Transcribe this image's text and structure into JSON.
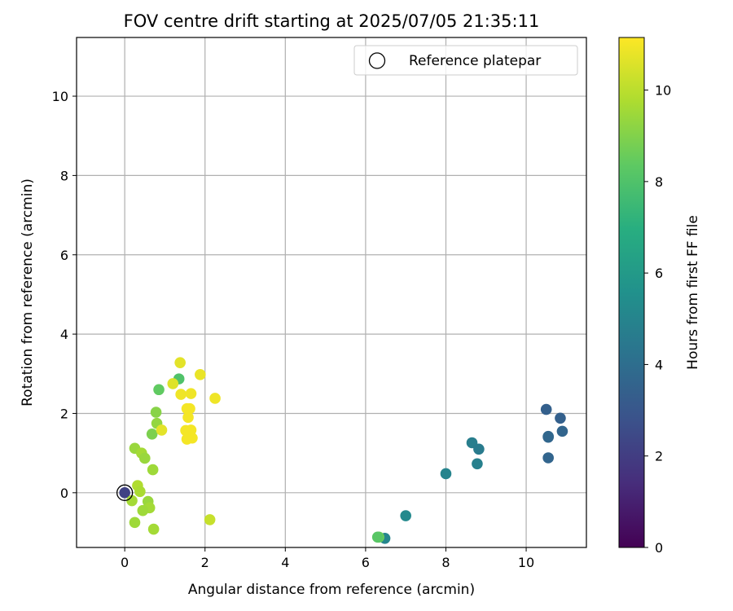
{
  "chart_data": {
    "type": "scatter",
    "title": "FOV centre drift starting at 2025/07/05 21:35:11",
    "xlabel": "Angular distance from reference (arcmin)",
    "ylabel": "Rotation from reference (arcmin)",
    "xlim": [
      -1.2,
      11.5
    ],
    "ylim": [
      -1.38,
      11.48
    ],
    "x_ticks": [
      0,
      2,
      4,
      6,
      8,
      10
    ],
    "y_ticks": [
      0,
      2,
      4,
      6,
      8,
      10
    ],
    "grid": true,
    "legend": {
      "position": "top-right",
      "entries": [
        "Reference platepar"
      ]
    },
    "reference_point": {
      "x": 0.0,
      "y": 0.0,
      "name": "Reference platepar"
    },
    "colorbar": {
      "label": "Hours from first FF file",
      "range": [
        0,
        11.15
      ],
      "ticks": [
        0,
        2,
        4,
        6,
        8,
        10
      ],
      "colormap": "viridis"
    },
    "points": [
      {
        "x": 0.0,
        "y": 0.0,
        "hours": 2.2
      },
      {
        "x": 10.5,
        "y": 2.1,
        "hours": 3.4
      },
      {
        "x": 10.85,
        "y": 1.88,
        "hours": 3.4
      },
      {
        "x": 10.9,
        "y": 1.55,
        "hours": 3.6
      },
      {
        "x": 10.55,
        "y": 1.4,
        "hours": 3.6
      },
      {
        "x": 10.55,
        "y": 1.42,
        "hours": 3.7
      },
      {
        "x": 10.55,
        "y": 0.88,
        "hours": 3.6
      },
      {
        "x": 8.65,
        "y": 1.26,
        "hours": 4.7
      },
      {
        "x": 8.82,
        "y": 1.1,
        "hours": 4.6
      },
      {
        "x": 8.78,
        "y": 0.73,
        "hours": 4.8
      },
      {
        "x": 8.0,
        "y": 0.48,
        "hours": 5.0
      },
      {
        "x": 7.0,
        "y": -0.58,
        "hours": 5.2
      },
      {
        "x": 6.48,
        "y": -1.15,
        "hours": 5.1
      },
      {
        "x": 6.33,
        "y": -1.12,
        "hours": 8.6
      },
      {
        "x": 6.3,
        "y": -1.12,
        "hours": 8.2
      },
      {
        "x": 0.85,
        "y": 2.6,
        "hours": 8.4
      },
      {
        "x": 1.35,
        "y": 2.87,
        "hours": 8.0
      },
      {
        "x": 0.78,
        "y": 2.03,
        "hours": 9.1
      },
      {
        "x": 0.8,
        "y": 1.75,
        "hours": 9.3
      },
      {
        "x": 0.68,
        "y": 1.48,
        "hours": 8.9
      },
      {
        "x": 0.25,
        "y": 1.12,
        "hours": 9.4
      },
      {
        "x": 0.42,
        "y": 1.0,
        "hours": 9.6
      },
      {
        "x": 0.5,
        "y": 0.87,
        "hours": 9.4
      },
      {
        "x": 0.7,
        "y": 0.58,
        "hours": 9.5
      },
      {
        "x": 0.32,
        "y": 0.18,
        "hours": 9.8
      },
      {
        "x": 0.38,
        "y": 0.03,
        "hours": 9.7
      },
      {
        "x": 0.18,
        "y": -0.2,
        "hours": 9.6
      },
      {
        "x": 0.58,
        "y": -0.22,
        "hours": 9.4
      },
      {
        "x": 0.62,
        "y": -0.38,
        "hours": 9.6
      },
      {
        "x": 0.45,
        "y": -0.45,
        "hours": 9.5
      },
      {
        "x": 0.25,
        "y": -0.75,
        "hours": 9.5
      },
      {
        "x": 0.72,
        "y": -0.92,
        "hours": 9.6
      },
      {
        "x": 2.12,
        "y": -0.68,
        "hours": 10.2
      },
      {
        "x": 0.92,
        "y": 1.58,
        "hours": 10.7
      },
      {
        "x": 1.2,
        "y": 2.75,
        "hours": 10.6
      },
      {
        "x": 1.38,
        "y": 3.28,
        "hours": 10.7
      },
      {
        "x": 1.88,
        "y": 2.98,
        "hours": 10.8
      },
      {
        "x": 1.4,
        "y": 2.48,
        "hours": 10.9
      },
      {
        "x": 1.65,
        "y": 2.5,
        "hours": 10.9
      },
      {
        "x": 2.25,
        "y": 2.38,
        "hours": 10.9
      },
      {
        "x": 1.55,
        "y": 2.12,
        "hours": 11.0
      },
      {
        "x": 1.62,
        "y": 2.12,
        "hours": 11.0
      },
      {
        "x": 1.58,
        "y": 1.9,
        "hours": 11.0
      },
      {
        "x": 1.52,
        "y": 1.57,
        "hours": 11.0
      },
      {
        "x": 1.65,
        "y": 1.58,
        "hours": 11.0
      },
      {
        "x": 1.55,
        "y": 1.35,
        "hours": 11.0
      },
      {
        "x": 1.68,
        "y": 1.38,
        "hours": 11.0
      }
    ]
  }
}
